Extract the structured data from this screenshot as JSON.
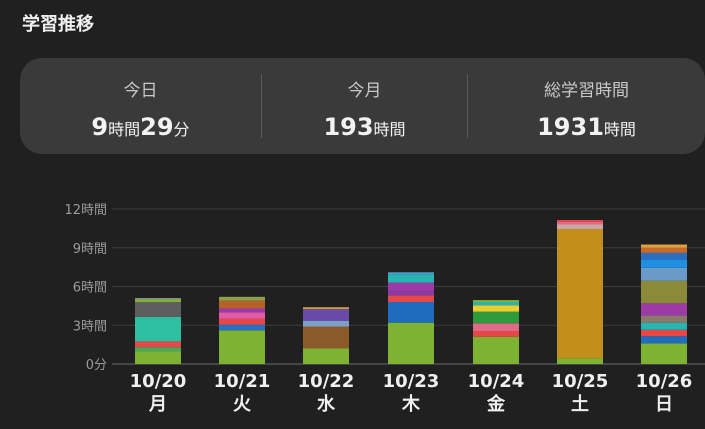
{
  "header": {
    "title": "学習推移"
  },
  "stats": [
    {
      "label": "今日",
      "parts": [
        "9",
        "時間",
        "29",
        "分"
      ]
    },
    {
      "label": "今月",
      "parts": [
        "193",
        "時間"
      ]
    },
    {
      "label": "総学習時間",
      "parts": [
        "1931",
        "時間"
      ]
    }
  ],
  "chart_data": {
    "type": "bar",
    "stacked": true,
    "ylim": [
      0,
      12
    ],
    "grid": true,
    "yticks": [
      {
        "value": 0,
        "label": "0分"
      },
      {
        "value": 3,
        "label": "3時間"
      },
      {
        "value": 6,
        "label": "6時間"
      },
      {
        "value": 9,
        "label": "9時間"
      },
      {
        "value": 12,
        "label": "12時間"
      }
    ],
    "categories": [
      {
        "date": "10/20",
        "weekday": "月"
      },
      {
        "date": "10/21",
        "weekday": "火"
      },
      {
        "date": "10/22",
        "weekday": "水"
      },
      {
        "date": "10/23",
        "weekday": "木"
      },
      {
        "date": "10/24",
        "weekday": "金"
      },
      {
        "date": "10/25",
        "weekday": "土"
      },
      {
        "date": "10/26",
        "weekday": "日"
      }
    ],
    "bars": [
      [
        {
          "value": 1.0,
          "color": "#7db232"
        },
        {
          "value": 0.3,
          "color": "#45a85a"
        },
        {
          "value": 0.45,
          "color": "#e64848"
        },
        {
          "value": 1.9,
          "color": "#2ebfa0"
        },
        {
          "value": 1.15,
          "color": "#5e5e5e"
        },
        {
          "value": 0.2,
          "color": "#7db232"
        },
        {
          "value": 0.1,
          "color": "#9a9a9a"
        }
      ],
      [
        {
          "value": 2.6,
          "color": "#7db232"
        },
        {
          "value": 0.45,
          "color": "#2a6fc0"
        },
        {
          "value": 0.45,
          "color": "#e64848"
        },
        {
          "value": 0.5,
          "color": "#e45ca8"
        },
        {
          "value": 0.3,
          "color": "#9c3aa8"
        },
        {
          "value": 0.6,
          "color": "#b8602a"
        },
        {
          "value": 0.3,
          "color": "#8aa04a"
        }
      ],
      [
        {
          "value": 1.2,
          "color": "#7db232"
        },
        {
          "value": 1.7,
          "color": "#8a5a28"
        },
        {
          "value": 0.45,
          "color": "#7ea0c8"
        },
        {
          "value": 0.9,
          "color": "#6a4aa8"
        },
        {
          "value": 0.15,
          "color": "#c8a030"
        }
      ],
      [
        {
          "value": 3.2,
          "color": "#7db232"
        },
        {
          "value": 1.6,
          "color": "#1f6cbf"
        },
        {
          "value": 0.5,
          "color": "#e64848"
        },
        {
          "value": 0.35,
          "color": "#8a3aa0"
        },
        {
          "value": 0.65,
          "color": "#9c3aa8"
        },
        {
          "value": 0.65,
          "color": "#2ab3b3"
        },
        {
          "value": 0.15,
          "color": "#4fa0d0"
        }
      ],
      [
        {
          "value": 2.1,
          "color": "#7db232"
        },
        {
          "value": 0.45,
          "color": "#e64848"
        },
        {
          "value": 0.6,
          "color": "#e06a8a"
        },
        {
          "value": 0.9,
          "color": "#2e9a3a"
        },
        {
          "value": 0.5,
          "color": "#e8d030"
        },
        {
          "value": 0.25,
          "color": "#2ab3b3"
        },
        {
          "value": 0.15,
          "color": "#7db232"
        }
      ],
      [
        {
          "value": 0.45,
          "color": "#7db232"
        },
        {
          "value": 10.0,
          "color": "#c38f1b"
        },
        {
          "value": 0.35,
          "color": "#c8a8a8"
        },
        {
          "value": 0.2,
          "color": "#e06a8a"
        },
        {
          "value": 0.15,
          "color": "#e64848"
        }
      ],
      [
        {
          "value": 1.6,
          "color": "#7db232"
        },
        {
          "value": 0.55,
          "color": "#1f6cbf"
        },
        {
          "value": 0.5,
          "color": "#e64848"
        },
        {
          "value": 0.55,
          "color": "#2ab3b3"
        },
        {
          "value": 0.55,
          "color": "#8a7a6a"
        },
        {
          "value": 0.95,
          "color": "#9c3aa8"
        },
        {
          "value": 1.75,
          "color": "#8a8a3a"
        },
        {
          "value": 1.0,
          "color": "#6a9ac8"
        },
        {
          "value": 0.6,
          "color": "#1f90e0"
        },
        {
          "value": 0.55,
          "color": "#2a6fc0"
        },
        {
          "value": 0.4,
          "color": "#c86a2a"
        },
        {
          "value": 0.25,
          "color": "#e0a040"
        }
      ]
    ]
  }
}
